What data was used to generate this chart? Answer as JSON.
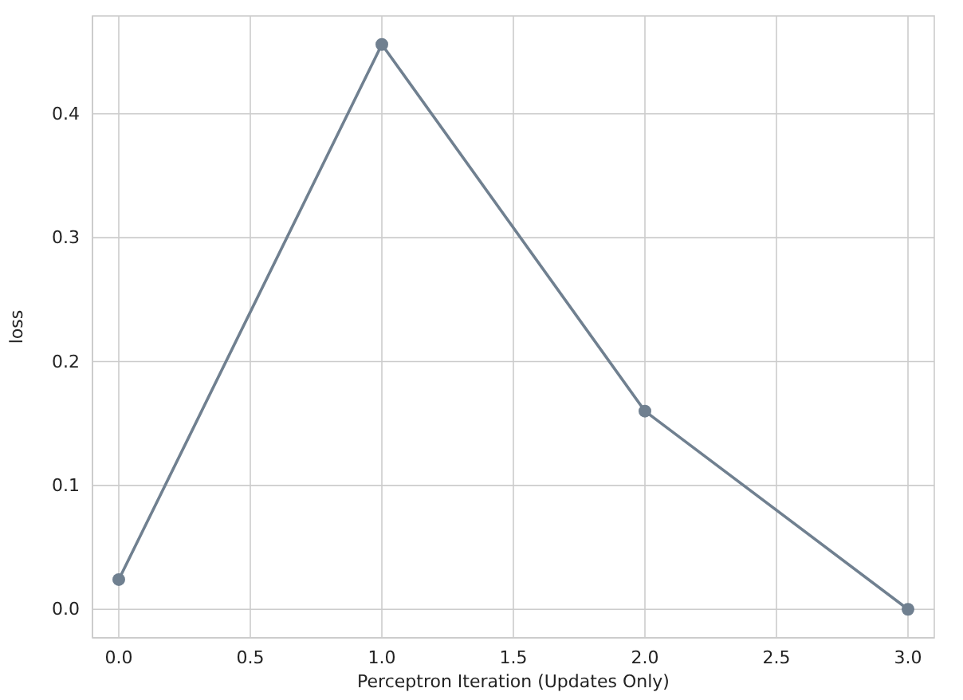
{
  "chart_data": {
    "type": "line",
    "xlabel": "Perceptron Iteration (Updates Only)",
    "ylabel": "loss",
    "x": [
      0,
      1,
      2,
      3
    ],
    "series": [
      {
        "color": "#708090",
        "values": [
          0.024,
          0.456,
          0.16,
          0.0
        ]
      }
    ],
    "xlim": [
      -0.1,
      3.1
    ],
    "xticks": [
      {
        "value": 0,
        "label": "0.0"
      },
      {
        "value": 0.5,
        "label": "0.5"
      },
      {
        "value": 1,
        "label": "1.0"
      },
      {
        "value": 1.5,
        "label": "1.5"
      },
      {
        "value": 2,
        "label": "2.0"
      },
      {
        "value": 2.5,
        "label": "2.5"
      },
      {
        "value": 3,
        "label": "3.0"
      }
    ],
    "ylim": [
      -0.023,
      0.479
    ],
    "yticks": [
      {
        "value": 0,
        "label": "0.0"
      },
      {
        "value": 0.1,
        "label": "0.1"
      },
      {
        "value": 0.2,
        "label": "0.2"
      },
      {
        "value": 0.3,
        "label": "0.3"
      },
      {
        "value": 0.4,
        "label": "0.4"
      }
    ],
    "grid": true,
    "marker": "circle",
    "line_style": "solid"
  }
}
